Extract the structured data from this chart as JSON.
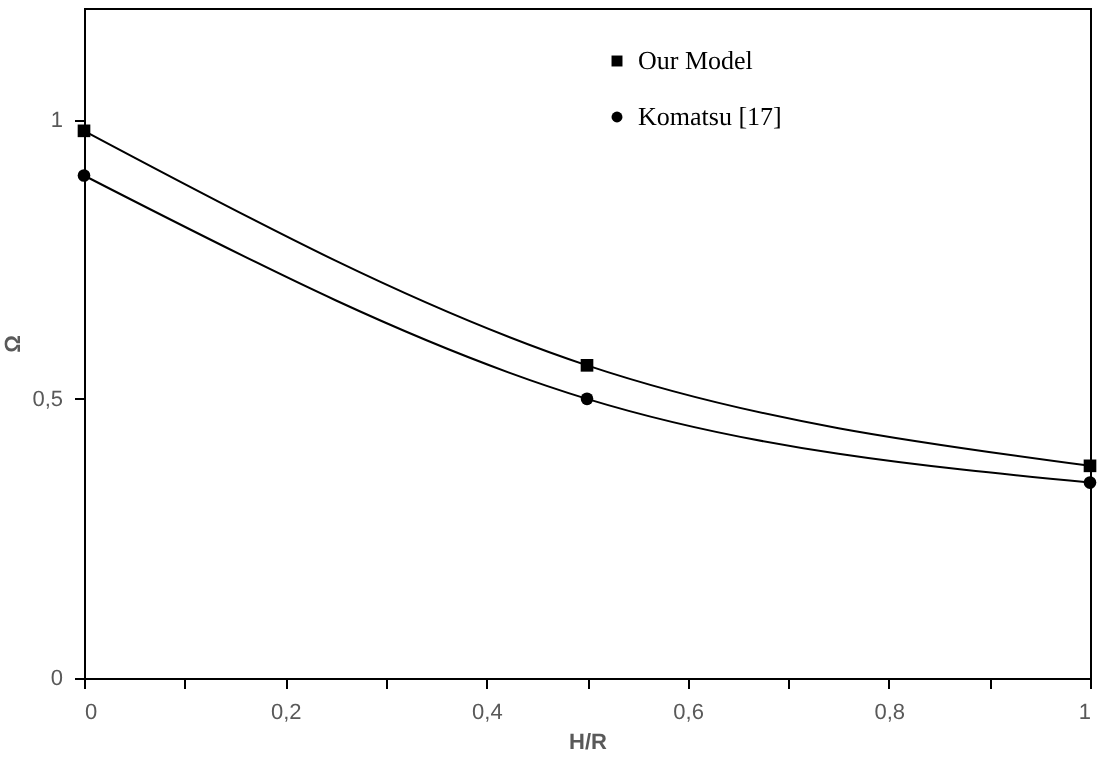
{
  "chart_data": {
    "type": "line",
    "xlabel": "H/R",
    "ylabel": "Ω",
    "legend": "top right",
    "grid": false,
    "xlim": [
      0,
      1
    ],
    "ylim": [
      0,
      1.2
    ],
    "xticks": [
      0,
      {
        "value": 0.1,
        "label": null
      },
      {
        "value": 0.2,
        "label": "0,2"
      },
      {
        "value": 0.3,
        "label": null
      },
      {
        "value": 0.4,
        "label": "0,4"
      },
      {
        "value": 0.5,
        "label": null
      },
      {
        "value": 0.6,
        "label": "0,6"
      },
      {
        "value": 0.7,
        "label": null
      },
      {
        "value": 0.8,
        "label": "0,8"
      },
      {
        "value": 0.9,
        "label": null
      },
      1
    ],
    "yticks": [
      0,
      {
        "value": 0.5,
        "label": "0,5"
      },
      1
    ],
    "x": [
      0,
      0.5,
      1
    ],
    "series": [
      {
        "name": "Our Model",
        "color": "#000000",
        "marker": "square",
        "values": [
          0.98,
          0.56,
          0.38
        ]
      },
      {
        "name": "Komatsu [17]",
        "color": "#000000",
        "marker": "circle",
        "values": [
          0.9,
          0.5,
          0.35
        ]
      }
    ]
  }
}
